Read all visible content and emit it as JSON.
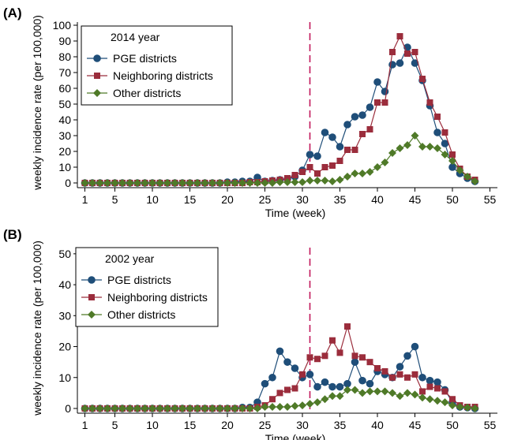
{
  "colors": {
    "pge": "#1f4e79",
    "neighboring": "#9b2d3c",
    "other": "#4f7a28",
    "vline": "#c2185b"
  },
  "chart_data": [
    {
      "type": "line",
      "panel_label": "(A)",
      "legend_title": "2014 year",
      "legend_placement": "top-left",
      "xlabel": "Time (week)",
      "ylabel": "weekly incidence rate (per 100,000)",
      "xlim": [
        0,
        56
      ],
      "ylim": [
        0,
        102
      ],
      "xticks": [
        1,
        5,
        10,
        15,
        20,
        25,
        30,
        35,
        40,
        45,
        50,
        55
      ],
      "yticks": [
        0,
        10,
        20,
        30,
        40,
        50,
        60,
        70,
        80,
        90,
        100
      ],
      "vline_x": 31,
      "x": [
        1,
        2,
        3,
        4,
        5,
        6,
        7,
        8,
        9,
        10,
        11,
        12,
        13,
        14,
        15,
        16,
        17,
        18,
        19,
        20,
        21,
        22,
        23,
        24,
        25,
        26,
        27,
        28,
        29,
        30,
        31,
        32,
        33,
        34,
        35,
        36,
        37,
        38,
        39,
        40,
        41,
        42,
        43,
        44,
        45,
        46,
        47,
        48,
        49,
        50,
        51,
        52,
        53
      ],
      "series": [
        {
          "name": "PGE districts",
          "key": "pge",
          "marker": "circle",
          "values": [
            0,
            0,
            0,
            0,
            0,
            0,
            0,
            0,
            0,
            0,
            0,
            0,
            0,
            0,
            0,
            0,
            0,
            0,
            0,
            0.5,
            0.5,
            1,
            1,
            3.5,
            1,
            1.5,
            2,
            2.5,
            4,
            8,
            18,
            17,
            32,
            29,
            23,
            37,
            42,
            43,
            48,
            64,
            58,
            75,
            76,
            86,
            76,
            65,
            49,
            32,
            25,
            10,
            6,
            3,
            1
          ]
        },
        {
          "name": "Neighboring districts",
          "key": "neighboring",
          "marker": "square",
          "values": [
            0,
            0,
            0,
            0,
            0,
            0,
            0,
            0,
            0,
            0,
            0,
            0,
            0,
            0,
            0,
            0,
            0,
            0,
            0,
            0,
            0,
            0,
            0.5,
            0.5,
            1,
            1.5,
            2,
            3,
            5,
            7,
            10,
            6,
            10,
            11,
            14,
            21,
            21,
            31,
            34,
            51,
            51,
            83,
            93,
            82,
            83,
            66,
            51,
            42,
            32,
            18,
            9,
            4,
            2
          ]
        },
        {
          "name": "Other districts",
          "key": "other",
          "marker": "diamond",
          "values": [
            0,
            0,
            0,
            0,
            0,
            0,
            0,
            0,
            0,
            0,
            0,
            0,
            0,
            0,
            0,
            0,
            0,
            0,
            0,
            0,
            0,
            0,
            0,
            0,
            0,
            0,
            0.5,
            0.5,
            0.5,
            0.5,
            1.5,
            1.5,
            1.5,
            1,
            2,
            4,
            6,
            6,
            7,
            10,
            13,
            19,
            22,
            24,
            30,
            23,
            23,
            22,
            18,
            14,
            8,
            4,
            1
          ]
        }
      ]
    },
    {
      "type": "line",
      "panel_label": "(B)",
      "legend_title": "2002 year",
      "legend_placement": "top-left",
      "xlabel": "Time (week)",
      "ylabel": "weekly incidence rate (per 100,000)",
      "xlim": [
        0,
        56
      ],
      "ylim": [
        0,
        52
      ],
      "xticks": [
        1,
        5,
        10,
        15,
        20,
        25,
        30,
        35,
        40,
        45,
        50,
        55
      ],
      "yticks": [
        0,
        10,
        20,
        30,
        40,
        50
      ],
      "vline_x": 31,
      "x": [
        1,
        2,
        3,
        4,
        5,
        6,
        7,
        8,
        9,
        10,
        11,
        12,
        13,
        14,
        15,
        16,
        17,
        18,
        19,
        20,
        21,
        22,
        23,
        24,
        25,
        26,
        27,
        28,
        29,
        30,
        31,
        32,
        33,
        34,
        35,
        36,
        37,
        38,
        39,
        40,
        41,
        42,
        43,
        44,
        45,
        46,
        47,
        48,
        49,
        50,
        51,
        52,
        53
      ],
      "series": [
        {
          "name": "PGE districts",
          "key": "pge",
          "marker": "circle",
          "values": [
            0,
            0,
            0,
            0,
            0,
            0,
            0,
            0,
            0,
            0,
            0,
            0,
            0,
            0,
            0,
            0,
            0,
            0,
            0,
            0,
            0,
            0.3,
            0.3,
            2,
            8,
            10,
            18.5,
            15,
            13,
            10,
            11,
            7,
            8.5,
            7,
            7,
            8,
            15,
            9,
            8,
            12,
            11,
            10,
            13.5,
            17,
            20,
            10,
            9,
            8.5,
            6,
            2,
            0.5,
            0.3,
            0
          ]
        },
        {
          "name": "Neighboring districts",
          "key": "neighboring",
          "marker": "square",
          "values": [
            0,
            0,
            0,
            0,
            0,
            0,
            0,
            0,
            0,
            0,
            0,
            0,
            0,
            0,
            0,
            0,
            0,
            0,
            0,
            0,
            0,
            0,
            0,
            0.5,
            1,
            3,
            5,
            6,
            6.5,
            11,
            16.5,
            16,
            17,
            22,
            18,
            26.5,
            17,
            16.5,
            15,
            13,
            12,
            10,
            11,
            10,
            11,
            5.5,
            7,
            6.5,
            5.5,
            3,
            1,
            0.5,
            0.5
          ]
        },
        {
          "name": "Other districts",
          "key": "other",
          "marker": "diamond",
          "values": [
            0,
            0,
            0,
            0,
            0,
            0,
            0,
            0,
            0,
            0,
            0,
            0,
            0,
            0,
            0,
            0,
            0,
            0,
            0,
            0,
            0,
            0,
            0,
            0,
            0.5,
            0.5,
            0.5,
            0.5,
            0.8,
            1,
            1.5,
            2,
            3,
            4,
            4,
            6,
            6,
            5,
            5.5,
            5.5,
            5.5,
            5,
            4,
            5,
            4.5,
            3.5,
            3,
            2.5,
            2,
            1,
            0.5,
            0.3,
            0
          ]
        }
      ]
    }
  ]
}
